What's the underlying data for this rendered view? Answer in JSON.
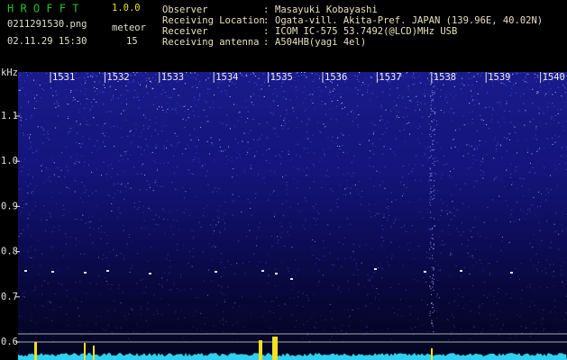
{
  "header": {
    "app_name": "H R O F F T",
    "version": "1.0.0",
    "file_name": "0211291530.png",
    "datetime": "02.11.29 15:30",
    "meteor_label": "meteor",
    "meteor_count": "15",
    "fields": [
      {
        "label": "Observer",
        "value": "Masayuki Kobayashi"
      },
      {
        "label": "Receiving Location",
        "value": "Ogata-vill. Akita-Pref. JAPAN (139.96E, 40.02N)"
      },
      {
        "label": "Receiver",
        "value": "ICOM IC-575 53.7492(@LCD)MHz USB"
      },
      {
        "label": "Receiving antenna",
        "value": "A504HB(yagi 4el)"
      }
    ]
  },
  "spectrogram": {
    "unit": "kHz",
    "frequency_labels": [
      "1.1",
      "1.0",
      "0.9",
      "0.8",
      "0.7",
      "0.6"
    ],
    "time_labels": [
      "1531",
      "1532",
      "1533",
      "1534",
      "1535",
      "1536",
      "1537",
      "1538",
      "1539",
      "1540"
    ]
  }
}
